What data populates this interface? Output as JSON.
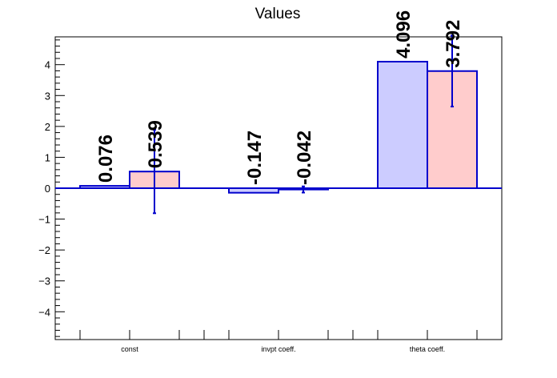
{
  "chart_data": {
    "type": "bar",
    "title": "Values",
    "categories": [
      "const",
      "invpt coeff.",
      "theta coeff."
    ],
    "series": [
      {
        "values": [
          0.076,
          -0.147,
          4.096
        ],
        "errors": [
          0.0,
          0.0,
          0.0
        ],
        "labels": [
          "0.076",
          "-0.147",
          "4.096"
        ],
        "fill": "#ccccff",
        "stroke": "#0000cc"
      },
      {
        "values": [
          0.539,
          -0.042,
          3.792
        ],
        "errors": [
          1.35,
          0.1,
          1.15
        ],
        "labels": [
          "0.539",
          "-0.042",
          "3.792"
        ],
        "fill": "#ffcccc",
        "stroke": "#0000cc"
      }
    ],
    "ylim": [
      -4.9,
      4.9
    ],
    "yticks": [
      -4,
      -3,
      -2,
      -1,
      0,
      1,
      2,
      3,
      4
    ],
    "ytick_labels": [
      "−4",
      "−3",
      "−2",
      "−1",
      "0",
      "1",
      "2",
      "3",
      "4"
    ],
    "grid": false,
    "legend": "none",
    "axis_color": "#000000",
    "zero_line_color": "#0000cc",
    "errorbar_color": "#0000cc"
  }
}
